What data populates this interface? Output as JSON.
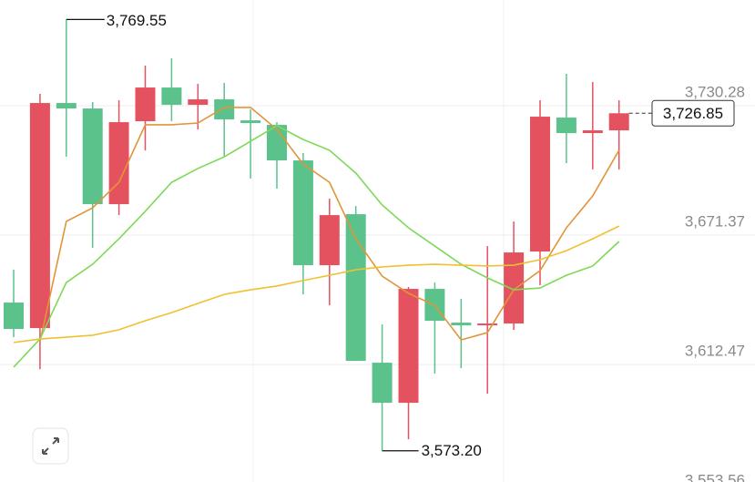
{
  "chart_data": {
    "type": "candlestick",
    "up_color": "#e5525f",
    "down_color": "#5bc28c",
    "ylim": [
      3559.0,
      3778.4
    ],
    "yticks": [
      {
        "value": 3730.28,
        "label": "3,730.28"
      },
      {
        "value": 3671.37,
        "label": "3,671.37"
      },
      {
        "value": 3612.47,
        "label": "3,612.47"
      },
      {
        "value": 3553.56,
        "label": "3,553.56"
      }
    ],
    "grid": true,
    "candles": {
      "open": [
        3640.68,
        3629.06,
        3731.51,
        3729.02,
        3685.47,
        3723.22,
        3738.56,
        3730.68,
        3733.17,
        3723.63,
        3721.56,
        3705.38,
        3657.68,
        3680.91,
        3613.3,
        3595.05,
        3646.9,
        3631.55,
        3630.31,
        3631.14,
        3663.9,
        3724.87,
        3717.82,
        3719.07
      ],
      "high": [
        3655.61,
        3735.66,
        3769.55,
        3731.93,
        3732.76,
        3748.52,
        3751.83,
        3740.22,
        3740.64,
        3728.61,
        3722.8,
        3708.7,
        3687.96,
        3684.64,
        3630.72,
        3647.73,
        3649.8,
        3642.34,
        3666.39,
        3677.59,
        3732.76,
        3744.78,
        3741.05,
        3732.76
      ],
      "low": [
        3624.92,
        3610.4,
        3707.04,
        3665.56,
        3680.49,
        3709.94,
        3723.22,
        3719.48,
        3707.04,
        3697.09,
        3692.52,
        3644.41,
        3639.43,
        3614.13,
        3573.2,
        3578.46,
        3608.33,
        3610.81,
        3599.2,
        3628.23,
        3648.56,
        3704.14,
        3701.23,
        3701.23
      ],
      "close": [
        3628.65,
        3731.51,
        3729.02,
        3685.47,
        3722.8,
        3738.56,
        3730.68,
        3733.17,
        3724.05,
        3722.39,
        3705.38,
        3657.68,
        3680.49,
        3614.13,
        3595.05,
        3646.9,
        3632.38,
        3630.31,
        3631.14,
        3663.49,
        3725.29,
        3717.82,
        3719.07,
        3726.85
      ]
    },
    "lines": [
      {
        "color": "#e0953a",
        "values": [
          null,
          3622.9,
          3677.6,
          3683.8,
          3695.4,
          3721.6,
          3721.6,
          3722.4,
          3729.5,
          3729.5,
          3719.5,
          3703.7,
          3695.4,
          3669.7,
          3652.7,
          3644.9,
          3639.4,
          3623.7,
          3627.0,
          3646.5,
          3655.2,
          3674.7,
          3689.2,
          3710.0
        ]
      },
      {
        "color": "#7ed957",
        "values": [
          3611.3,
          3624.1,
          3649.8,
          3658.1,
          3669.7,
          3682.2,
          3695.4,
          3701.7,
          3707.0,
          3714.1,
          3721.2,
          3714.9,
          3710.0,
          3699.6,
          3685.1,
          3674.7,
          3666.4,
          3658.1,
          3651.9,
          3646.5,
          3647.3,
          3653.1,
          3657.3,
          3668.5
        ]
      },
      {
        "color": "#f0c030",
        "values": [
          3622.5,
          3624.1,
          3624.9,
          3625.8,
          3628.3,
          3632.4,
          3636.1,
          3640.3,
          3644.4,
          3646.5,
          3648.2,
          3650.7,
          3653.1,
          3655.6,
          3656.9,
          3657.7,
          3658.1,
          3657.7,
          3657.3,
          3657.7,
          3660.2,
          3664.3,
          3669.7,
          3675.5
        ]
      }
    ],
    "annotations": {
      "high": {
        "value": 3769.55,
        "label": "3,769.55"
      },
      "low": {
        "value": 3573.2,
        "label": "3,573.20"
      },
      "last": {
        "value": 3726.85,
        "label": "3,726.85"
      }
    }
  }
}
